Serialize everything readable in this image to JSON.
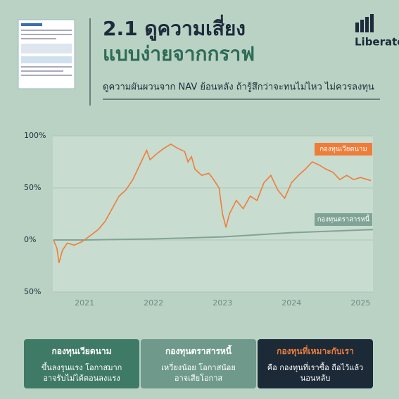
{
  "header": {
    "title_line1": "2.1 ดูความเสี่ยง",
    "title_line2": "แบบง่ายจากกราฟ",
    "subtitle": "ดูความผันผวนจาก NAV ย้อนหลัง ถ้ารู้สึกว่าจะทนไม่ไหว ไม่ควรลงทุน",
    "logo": "Liberator"
  },
  "chart_data": {
    "type": "line",
    "xlim": [
      2020.54,
      2025.18
    ],
    "xticks": [
      2021,
      2022,
      2023,
      2024,
      2025
    ],
    "ylim": [
      -50,
      100
    ],
    "yticks": [
      {
        "value": -50,
        "label": "50%"
      },
      {
        "value": 0,
        "label": "0%"
      },
      {
        "value": 50,
        "label": "50%"
      },
      {
        "value": 100,
        "label": "100%"
      }
    ],
    "grid": true,
    "series": [
      {
        "name": "กองทุนเวียดนาม",
        "color": "#ee7d3a",
        "x": [
          2020.55,
          2020.6,
          2020.63,
          2020.68,
          2020.75,
          2020.85,
          2020.95,
          2021.0,
          2021.1,
          2021.2,
          2021.3,
          2021.4,
          2021.5,
          2021.6,
          2021.7,
          2021.8,
          2021.9,
          2021.95,
          2022.05,
          2022.15,
          2022.25,
          2022.35,
          2022.45,
          2022.5,
          2022.55,
          2022.6,
          2022.7,
          2022.8,
          2022.85,
          2022.95,
          2023.0,
          2023.05,
          2023.1,
          2023.2,
          2023.3,
          2023.4,
          2023.5,
          2023.6,
          2023.7,
          2023.8,
          2023.9,
          2024.0,
          2024.1,
          2024.2,
          2024.3,
          2024.4,
          2024.5,
          2024.6,
          2024.7,
          2024.8,
          2024.9,
          2025.0,
          2025.1,
          2025.15
        ],
        "values": [
          0,
          -8,
          -22,
          -10,
          -3,
          -5,
          -2,
          0,
          5,
          10,
          18,
          30,
          42,
          48,
          58,
          72,
          86,
          77,
          83,
          88,
          92,
          88,
          85,
          75,
          80,
          68,
          62,
          64,
          60,
          50,
          25,
          12,
          25,
          38,
          30,
          42,
          38,
          55,
          62,
          48,
          40,
          55,
          62,
          68,
          75,
          72,
          68,
          65,
          58,
          62,
          58,
          60,
          58,
          57
        ]
      },
      {
        "name": "กองทุนตราสารหนี้",
        "color": "#7fa496",
        "x": [
          2020.55,
          2021.0,
          2022.0,
          2023.0,
          2024.0,
          2025.18
        ],
        "values": [
          0,
          0,
          1,
          3,
          7,
          10
        ]
      }
    ]
  },
  "cards": [
    {
      "title": "กองทุนเวียดนาม",
      "lines": [
        "ขึ้นลงรุนแรง โอกาสมาก",
        "อาจรับไม่ได้ตอนลงแรง"
      ]
    },
    {
      "title": "กองทุนตราสารหนี้",
      "lines": [
        "เหวี่ยงน้อย โอกาสน้อย",
        "อาจเสียโอกาส"
      ]
    },
    {
      "title": "กองทุนที่เหมาะกับเรา",
      "lines": [
        "คือ กองทุนที่เราซื้อ ถือไว้แล้ว",
        "นอนหลับ"
      ]
    }
  ]
}
